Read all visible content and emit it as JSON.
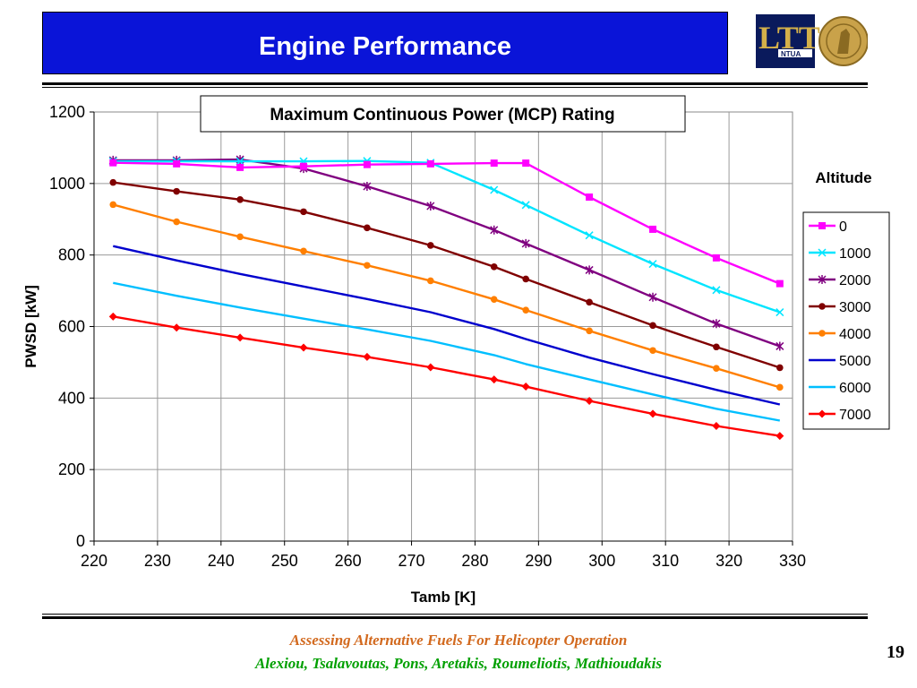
{
  "slide": {
    "title": "Engine Performance",
    "footer_line1": "Assessing Alternative Fuels For Helicopter Operation",
    "footer_line2": "Alexiou, Tsalavoutas, Pons, Aretakis, Roumeliotis, Mathioudakis",
    "page_number": "19",
    "colors": {
      "title_bg": "#0a14d8",
      "footer_orange": "#d2691e",
      "footer_green": "#00a000"
    },
    "logo": {
      "text_big": "LTT",
      "text_small": "NTUA"
    }
  },
  "chart_data": {
    "type": "line",
    "title": "Maximum Continuous Power (MCP) Rating",
    "xlabel": "Tamb [K]",
    "ylabel": "PWSD [kW]",
    "legend_title": "Altitude",
    "legend_position": "right",
    "xlim": [
      220,
      330
    ],
    "ylim": [
      0,
      1200
    ],
    "xticks": [
      220,
      230,
      240,
      250,
      260,
      270,
      280,
      290,
      300,
      310,
      320,
      330
    ],
    "yticks": [
      0,
      200,
      400,
      600,
      800,
      1000,
      1200
    ],
    "grid": true,
    "series": [
      {
        "name": "0",
        "color": "#ff00ff",
        "marker": "square",
        "x": [
          223,
          233,
          243,
          253,
          263,
          273,
          283,
          288,
          298,
          308,
          318,
          328
        ],
        "y": [
          1058,
          1055,
          1045,
          1048,
          1053,
          1055,
          1057,
          1057,
          962,
          872,
          792,
          720
        ]
      },
      {
        "name": "1000",
        "color": "#00e5ff",
        "marker": "x",
        "x": [
          223,
          233,
          243,
          253,
          263,
          273,
          283,
          288,
          298,
          308,
          318,
          328
        ],
        "y": [
          1062,
          1062,
          1062,
          1062,
          1063,
          1058,
          982,
          940,
          855,
          775,
          702,
          640
        ]
      },
      {
        "name": "2000",
        "color": "#800080",
        "marker": "star",
        "x": [
          223,
          233,
          243,
          253,
          263,
          273,
          283,
          288,
          298,
          308,
          318,
          328
        ],
        "y": [
          1065,
          1065,
          1067,
          1042,
          992,
          937,
          870,
          832,
          758,
          682,
          608,
          545
        ]
      },
      {
        "name": "3000",
        "color": "#800000",
        "marker": "circle",
        "x": [
          223,
          233,
          243,
          253,
          263,
          273,
          283,
          288,
          298,
          308,
          318,
          328
        ],
        "y": [
          1003,
          978,
          955,
          921,
          876,
          827,
          767,
          733,
          668,
          603,
          543,
          485
        ]
      },
      {
        "name": "4000",
        "color": "#ff7f00",
        "marker": "circle",
        "x": [
          223,
          233,
          243,
          253,
          263,
          273,
          283,
          288,
          298,
          308,
          318,
          328
        ],
        "y": [
          941,
          893,
          851,
          811,
          771,
          728,
          676,
          646,
          588,
          533,
          483,
          430
        ]
      },
      {
        "name": "5000",
        "color": "#0000cd",
        "marker": "none",
        "x": [
          223,
          233,
          243,
          253,
          263,
          273,
          283,
          288,
          298,
          308,
          318,
          328
        ],
        "y": [
          825,
          785,
          747,
          712,
          677,
          640,
          593,
          565,
          513,
          467,
          423,
          382
        ]
      },
      {
        "name": "6000",
        "color": "#00bfff",
        "marker": "none",
        "x": [
          223,
          233,
          243,
          253,
          263,
          273,
          283,
          288,
          298,
          308,
          318,
          328
        ],
        "y": [
          722,
          686,
          653,
          622,
          592,
          560,
          520,
          495,
          452,
          410,
          370,
          337
        ]
      },
      {
        "name": "7000",
        "color": "#ff0000",
        "marker": "diamond",
        "x": [
          223,
          233,
          243,
          253,
          263,
          273,
          283,
          288,
          298,
          308,
          318,
          328
        ],
        "y": [
          628,
          597,
          569,
          541,
          515,
          486,
          452,
          432,
          392,
          356,
          322,
          294
        ]
      }
    ]
  }
}
